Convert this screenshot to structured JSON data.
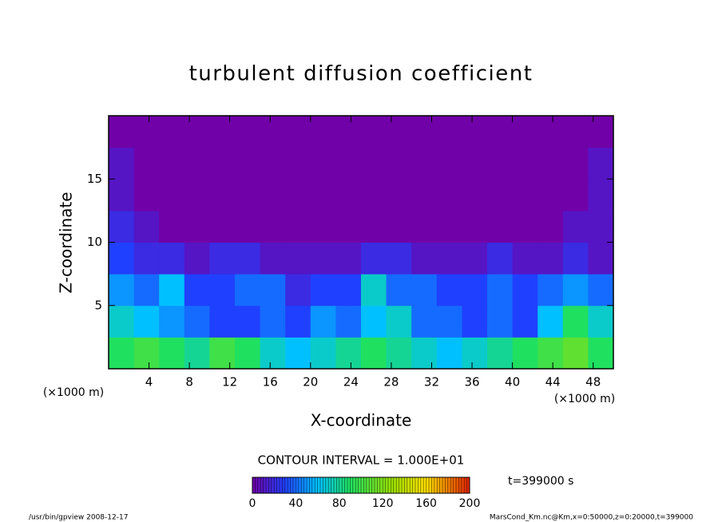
{
  "chart_data": {
    "type": "contour",
    "title": "turbulent diffusion coefficient",
    "xlabel": "X-coordinate",
    "ylabel": "Z-coordinate",
    "x_unit": "(×1000 m)",
    "y_unit": "(×1000 m)",
    "xlim": [
      0,
      50
    ],
    "ylim": [
      0,
      20
    ],
    "xticks": [
      4,
      8,
      12,
      16,
      20,
      24,
      28,
      32,
      36,
      40,
      44,
      48
    ],
    "yticks": [
      5,
      10,
      15
    ],
    "field": {
      "x": [
        0,
        2.5,
        5,
        7.5,
        10,
        12.5,
        15,
        17.5,
        20,
        22.5,
        25,
        27.5,
        30,
        32.5,
        35,
        37.5,
        40,
        42.5,
        45,
        47.5,
        50
      ],
      "z": [
        0,
        2.5,
        5,
        7.5,
        10,
        12.5,
        15,
        17.5,
        20
      ],
      "values": [
        [
          90,
          100,
          90,
          80,
          100,
          90,
          70,
          60,
          70,
          80,
          90,
          80,
          70,
          60,
          70,
          80,
          90,
          100,
          110,
          90
        ],
        [
          70,
          60,
          50,
          40,
          30,
          30,
          40,
          30,
          50,
          40,
          60,
          70,
          40,
          40,
          30,
          40,
          30,
          60,
          90,
          70
        ],
        [
          50,
          40,
          60,
          30,
          30,
          40,
          40,
          20,
          30,
          30,
          70,
          40,
          40,
          30,
          30,
          40,
          30,
          40,
          50,
          40
        ],
        [
          30,
          20,
          20,
          10,
          20,
          20,
          10,
          10,
          10,
          10,
          20,
          20,
          10,
          10,
          10,
          20,
          10,
          10,
          20,
          10
        ],
        [
          20,
          10,
          0,
          0,
          0,
          0,
          0,
          0,
          0,
          0,
          0,
          0,
          0,
          0,
          0,
          0,
          0,
          0,
          10,
          10
        ],
        [
          10,
          0,
          0,
          0,
          0,
          0,
          0,
          0,
          0,
          0,
          0,
          0,
          0,
          0,
          0,
          0,
          0,
          0,
          0,
          10
        ],
        [
          10,
          0,
          0,
          0,
          0,
          0,
          0,
          0,
          0,
          0,
          0,
          0,
          0,
          0,
          0,
          0,
          0,
          0,
          0,
          10
        ],
        [
          0,
          0,
          0,
          0,
          0,
          0,
          0,
          0,
          0,
          0,
          0,
          0,
          0,
          0,
          0,
          0,
          0,
          0,
          0,
          0
        ]
      ]
    },
    "colormap": [
      "#7000a8",
      "#2040ff",
      "#00c0ff",
      "#20e060",
      "#a0e000",
      "#ffe000",
      "#e02000"
    ],
    "colormap_stops": [
      0,
      30,
      60,
      90,
      130,
      160,
      200
    ],
    "clim": [
      0,
      200
    ],
    "colorbar_ticks": [
      0,
      40,
      80,
      120,
      160,
      200
    ],
    "contour_interval_label": "CONTOUR INTERVAL = 1.000E+01",
    "time_label": "t=399000 s",
    "footer_left": "/usr/bin/gpview  2008-12-17",
    "footer_right": "MarsCond_Km.nc@Km,x=0:50000,z=0:20000,t=399000"
  }
}
